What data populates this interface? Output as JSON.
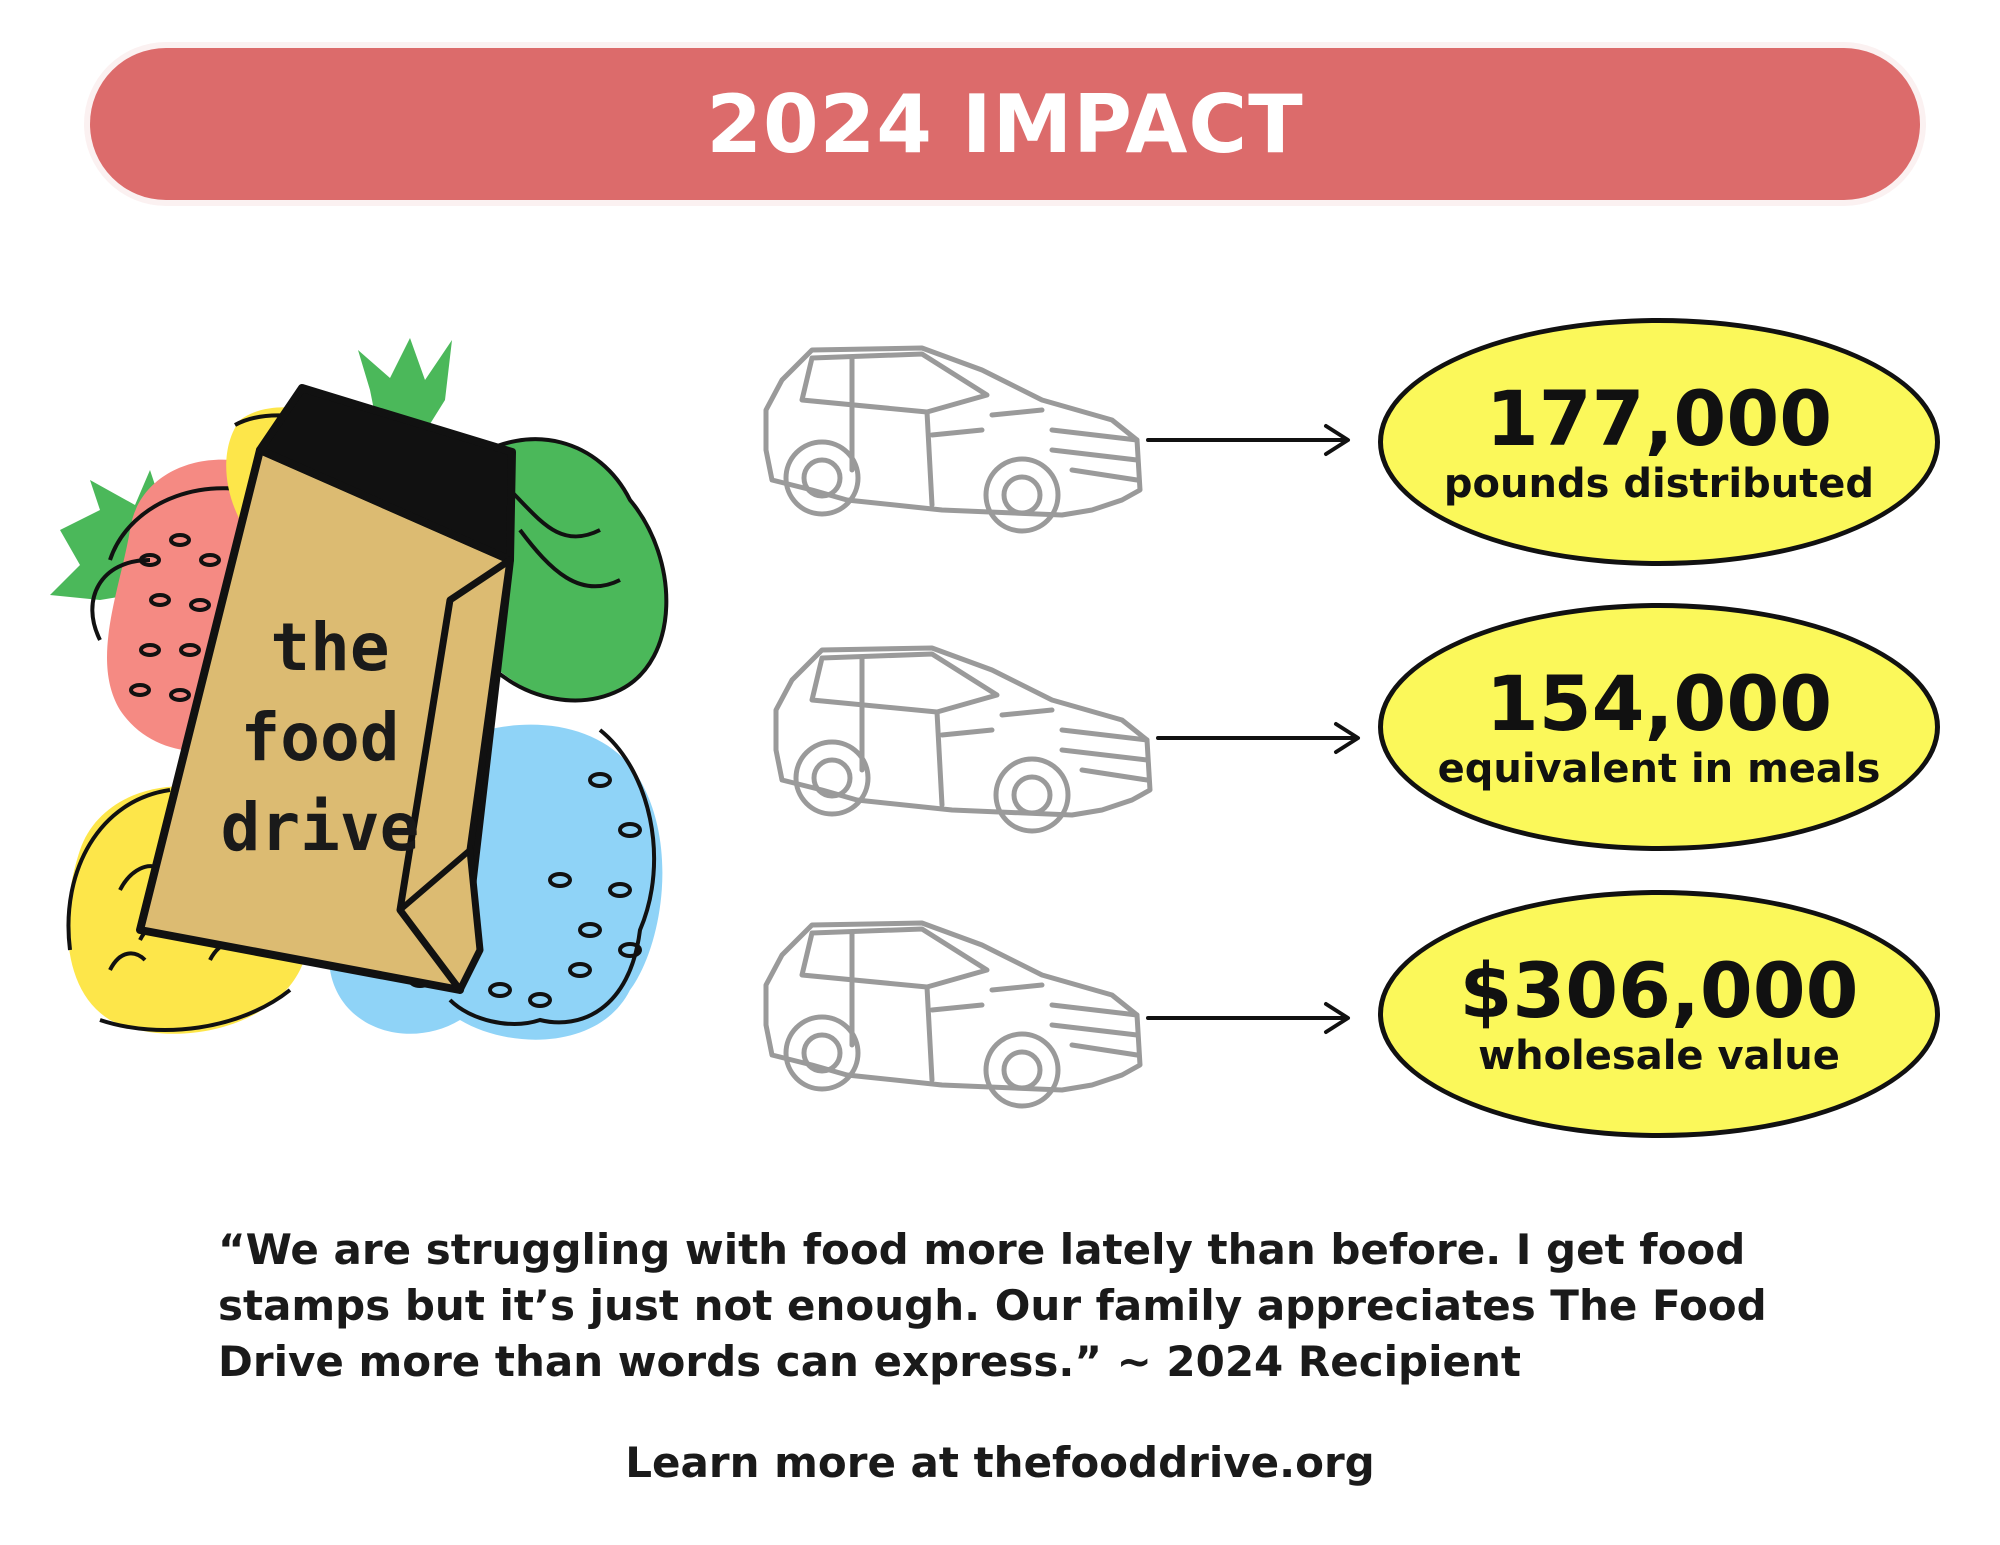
{
  "banner": {
    "title": "2024 IMPACT",
    "color": "#dc6b6b"
  },
  "logo": {
    "line1": "the",
    "line2": "food",
    "line3": "drive",
    "bag_color": "#dcbb72"
  },
  "stats": [
    {
      "value": "177,000",
      "label": "pounds distributed",
      "icon": "car-icon"
    },
    {
      "value": "154,000",
      "label": "equivalent in meals",
      "icon": "car-icon"
    },
    {
      "value": "$306,000",
      "label": "wholesale value",
      "icon": "car-icon"
    }
  ],
  "stat_fill_color": "#fbf85a",
  "quote": {
    "text": "“We are struggling with food more lately than before. I get food stamps but it’s just not enough. Our family appreciates The Food Drive more than words can express.” ~ 2024 Recipient"
  },
  "footer": {
    "text": "Learn more at thefooddrive.org"
  }
}
